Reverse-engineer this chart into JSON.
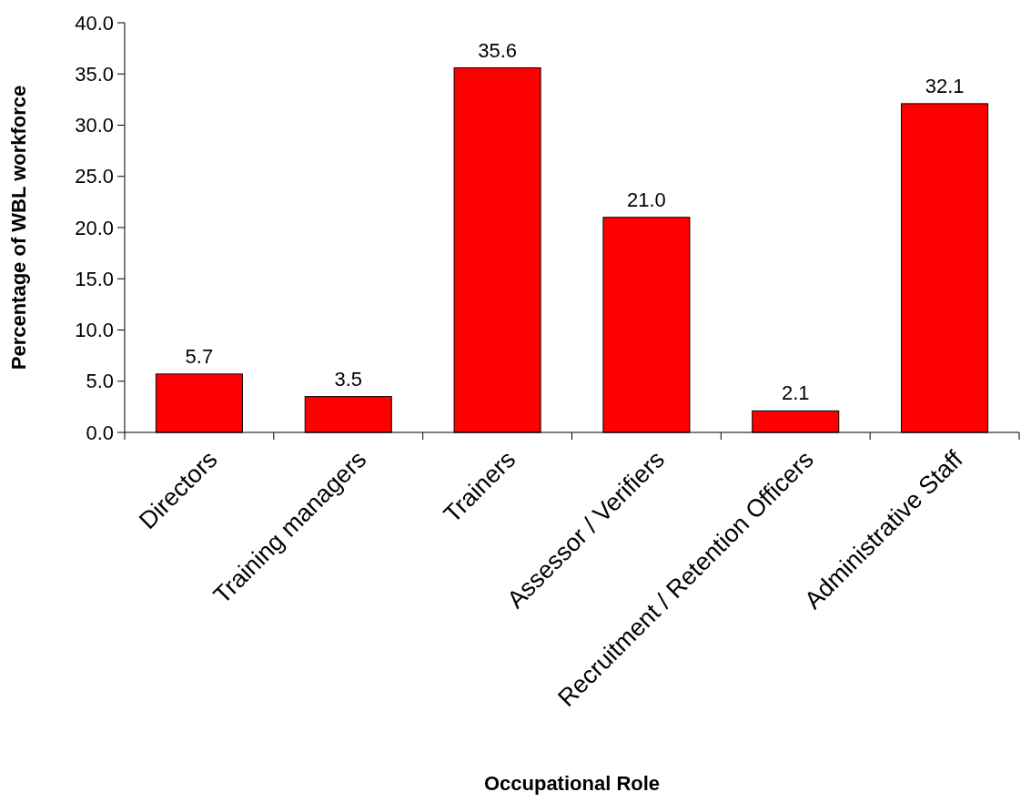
{
  "chart_data": {
    "type": "bar",
    "xlabel": "Occupational Role",
    "ylabel": "Percentage of WBL workforce",
    "categories": [
      "Directors",
      "Training managers",
      "Trainers",
      "Assessor / Verifiers",
      "Recruitment / Retention Officers",
      "Administrative Staff"
    ],
    "values": [
      5.7,
      3.5,
      35.6,
      21.0,
      2.1,
      32.1
    ],
    "value_labels": [
      "5.7",
      "3.5",
      "35.6",
      "21.0",
      "2.1",
      "32.1"
    ],
    "color": "#ff0000",
    "ylim": [
      0,
      40
    ],
    "yticks": [
      {
        "value": 0,
        "label": "0.0"
      },
      {
        "value": 5,
        "label": "5.0"
      },
      {
        "value": 10,
        "label": "10.0"
      },
      {
        "value": 15,
        "label": "15.0"
      },
      {
        "value": 20,
        "label": "20.0"
      },
      {
        "value": 25,
        "label": "25.0"
      },
      {
        "value": 30,
        "label": "30.0"
      },
      {
        "value": 35,
        "label": "35.0"
      },
      {
        "value": 40,
        "label": "40.0"
      }
    ],
    "grid": false
  }
}
